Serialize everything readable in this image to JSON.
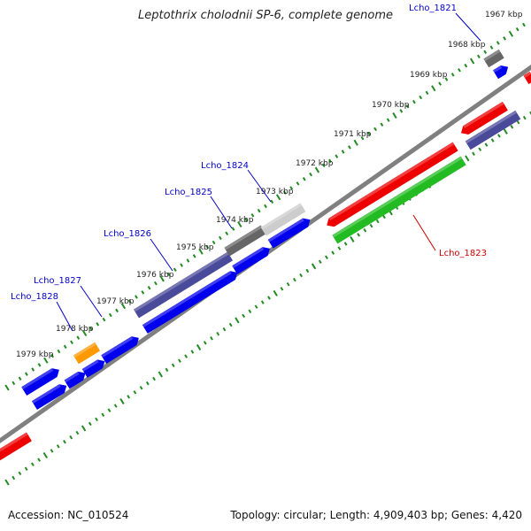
{
  "title": "Leptothrix cholodnii SP-6, complete genome",
  "accession_text": "Accession: NC_010524",
  "stats_text": "Topology: circular; Length: 4,909,403 bp; Genes: 4,420",
  "colors": {
    "backbone": "#808080",
    "tick": "#228b22",
    "blue_gene": "#0000ee",
    "red_gene": "#ee0000",
    "green_gene": "#22bb22",
    "purple_gene": "#4a4a9a",
    "gray_gene": "#666666",
    "lightgray_gene": "#cccccc",
    "orange_gene": "#ff9900",
    "label_blue": "#0000cc",
    "label_red": "#cc0000",
    "ruler_text": "#222222"
  },
  "ruler": [
    {
      "label": "1967 kbp"
    },
    {
      "label": "1968 kbp"
    },
    {
      "label": "1969 kbp"
    },
    {
      "label": "1970 kbp"
    },
    {
      "label": "1971 kbp"
    },
    {
      "label": "1972 kbp"
    },
    {
      "label": "1973 kbp"
    },
    {
      "label": "1974 kbp"
    },
    {
      "label": "1975 kbp"
    },
    {
      "label": "1976 kbp"
    },
    {
      "label": "1977 kbp"
    },
    {
      "label": "1978 kbp"
    },
    {
      "label": "1979 kbp"
    }
  ],
  "gene_labels": [
    {
      "text": "Lcho_1821",
      "color": "label_blue"
    },
    {
      "text": "Lcho_1823",
      "color": "label_red"
    },
    {
      "text": "Lcho_1824",
      "color": "label_blue"
    },
    {
      "text": "Lcho_1825",
      "color": "label_blue"
    },
    {
      "text": "Lcho_1826",
      "color": "label_blue"
    },
    {
      "text": "Lcho_1827",
      "color": "label_blue"
    },
    {
      "text": "Lcho_1828",
      "color": "label_blue"
    }
  ]
}
